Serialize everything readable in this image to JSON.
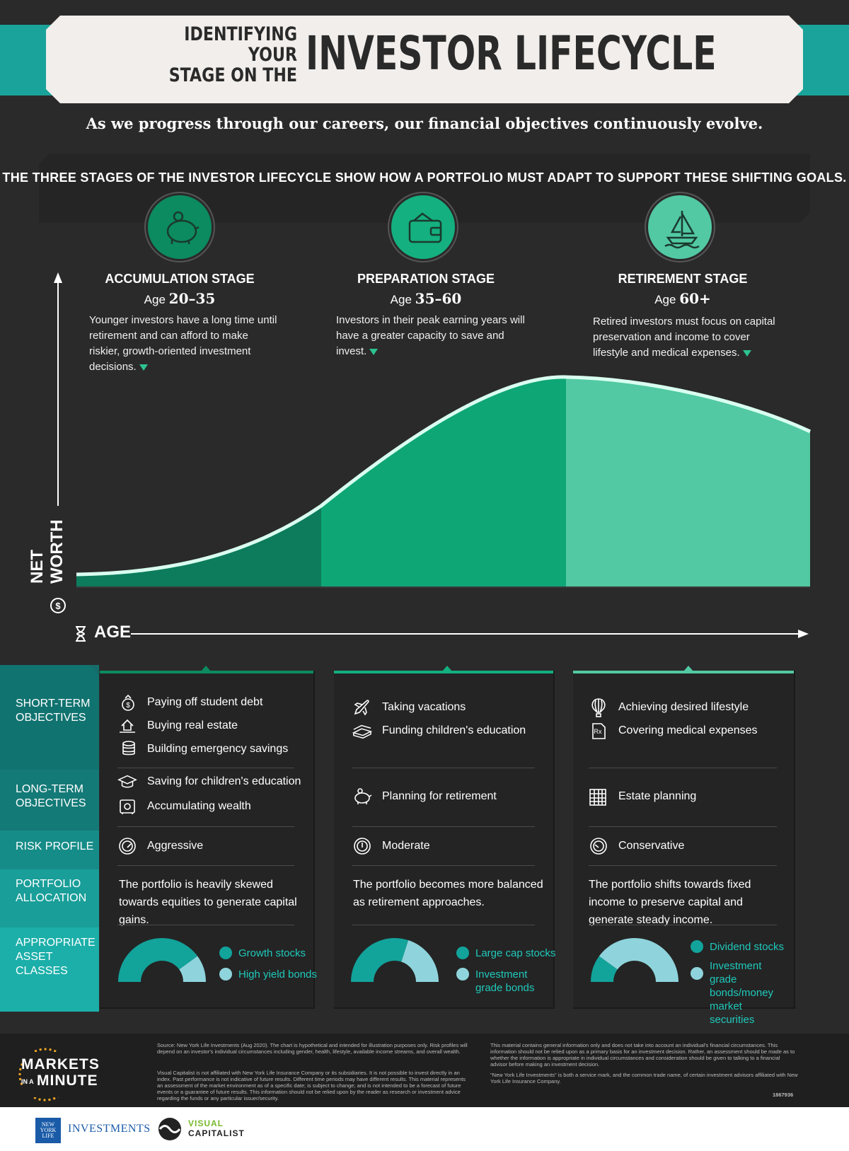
{
  "header": {
    "title_small_line1": "IDENTIFYING YOUR",
    "title_small_line2": "STAGE ON THE",
    "title_big": "INVESTOR LIFECYCLE",
    "subtitle": "As we progress through our careers, our financial objectives continuously evolve.",
    "intro": "THE THREE STAGES OF THE INVESTOR LIFECYCLE SHOW HOW A PORTFOLIO MUST ADAPT TO SUPPORT THESE SHIFTING GOALS."
  },
  "stages": [
    {
      "name": "ACCUMULATION STAGE",
      "age_prefix": "Age",
      "age": "20–35",
      "icon": "piggy-bank-icon",
      "desc": "Younger investors have a long time until retirement and can afford to make riskier, growth-oriented investment decisions."
    },
    {
      "name": "PREPARATION STAGE",
      "age_prefix": "Age",
      "age": "35–60",
      "icon": "wallet-icon",
      "desc": "Investors in their peak earning years will have a greater capacity to save and invest."
    },
    {
      "name": "RETIREMENT STAGE",
      "age_prefix": "Age",
      "age": "60+",
      "icon": "sailboat-icon",
      "desc": "Retired investors must focus on capital preservation and income to cover lifestyle and medical expenses."
    }
  ],
  "chart": {
    "ylabel": "NET WORTH",
    "xlabel": "AGE",
    "colors": {
      "accumulation": "#0d7c5c",
      "preparation": "#0ea675",
      "retirement": "#52c9a3",
      "line": "#d9fff0"
    }
  },
  "row_labels": {
    "short_term": "SHORT-TERM OBJECTIVES",
    "long_term": "LONG-TERM OBJECTIVES",
    "risk": "RISK PROFILE",
    "portfolio": "PORTFOLIO ALLOCATION",
    "asset_classes": "APPROPRIATE ASSET CLASSES"
  },
  "panels": [
    {
      "short_term": [
        "Paying off student debt",
        "Buying real estate",
        "Building emergency savings"
      ],
      "long_term": [
        "Saving for children's education",
        "Accumulating wealth"
      ],
      "risk": "Aggressive",
      "allocation": "The portfolio is heavily skewed towards equities to generate capital gains.",
      "assets": [
        {
          "label": "Growth stocks",
          "color": "#12a39b",
          "share": 0.8
        },
        {
          "label": "High yield bonds",
          "color": "#8fd4dc",
          "share": 0.2
        }
      ]
    },
    {
      "short_term": [
        "Taking vacations",
        "Funding children's education"
      ],
      "long_term": [
        "Planning for retirement"
      ],
      "risk": "Moderate",
      "allocation": "The portfolio becomes more balanced as retirement approaches.",
      "assets": [
        {
          "label": "Large cap stocks",
          "color": "#12a39b",
          "share": 0.6
        },
        {
          "label": "Investment grade bonds",
          "color": "#8fd4dc",
          "share": 0.4
        }
      ]
    },
    {
      "short_term": [
        "Achieving desired lifestyle",
        "Covering medical expenses"
      ],
      "long_term": [
        "Estate planning"
      ],
      "risk": "Conservative",
      "allocation": "The portfolio shifts towards fixed income to preserve capital and generate steady income.",
      "assets": [
        {
          "label": "Dividend stocks",
          "color": "#12a39b",
          "share": 0.2
        },
        {
          "label": "Investment grade bonds/money market securities",
          "color": "#8fd4dc",
          "share": 0.8
        }
      ]
    }
  ],
  "footer": {
    "brand_line1": "MARKETS",
    "brand_in": "IN A",
    "brand_line2": "MINUTE",
    "source": "Source: New York Life Investments (Aug 2020). The chart is hypothetical and intended for illustration purposes only. Risk profiles will depend on an investor's individual circumstances including gender, health, lifestyle, available income streams, and overall wealth.",
    "disclaimer1": "Visual Capitalist is not affiliated with New York Life Insurance Company or its subsidiaries. It is not possible to invest directly in an index. Past performance is not indicative of future results. Different time periods may have different results. This material represents an assessment of the market environment as of a specific date; is subject to change; and is not intended to be a forecast of future events or a guarantee of future results. This information should not be relied upon by the reader as research or investment advice regarding the funds or any particular issuer/security.",
    "disclaimer2": "This material contains general information only and does not take into account an individual's financial circumstances. This information should not be relied upon as a primary basis for an investment decision. Rather, an assessment should be made as to whether the information is appropriate in individual circumstances and consideration should be given to talking to a financial advisor before making an investment decision.",
    "disclaimer3": "\"New York Life Investments\" is both a service mark, and the common trade name, of certain investment advisors affiliated with New York Life Insurance Company.",
    "code": "1867936",
    "nyl_logo_text": "NEW YORK LIFE",
    "nyl_investments": "INVESTMENTS",
    "vc_line1": "VISUAL",
    "vc_line2": "CAPITALIST"
  }
}
